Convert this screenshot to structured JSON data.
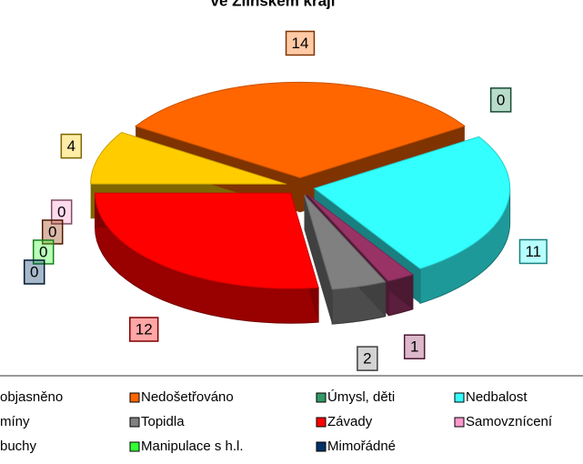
{
  "chart_data": {
    "type": "pie",
    "title": "ve Zlínském kraji",
    "categories": [
      "objasněno",
      "Nedošetřováno",
      "Úmysl, děti",
      "Nedbalost",
      "míny",
      "Topidla",
      "Závady",
      "Samovznícení",
      "buchy",
      "Manipulace s h.l.",
      "Mimořádné"
    ],
    "values": [
      4,
      14,
      0,
      11,
      1,
      2,
      12,
      0,
      0,
      0,
      0
    ],
    "colors": [
      "#ffcc00",
      "#ff6600",
      "#339966",
      "#33ffff",
      "#993366",
      "#808080",
      "#ff0000",
      "#ff99cc",
      "#993300",
      "#33ff33",
      "#003366"
    ],
    "legend": "bottom"
  }
}
